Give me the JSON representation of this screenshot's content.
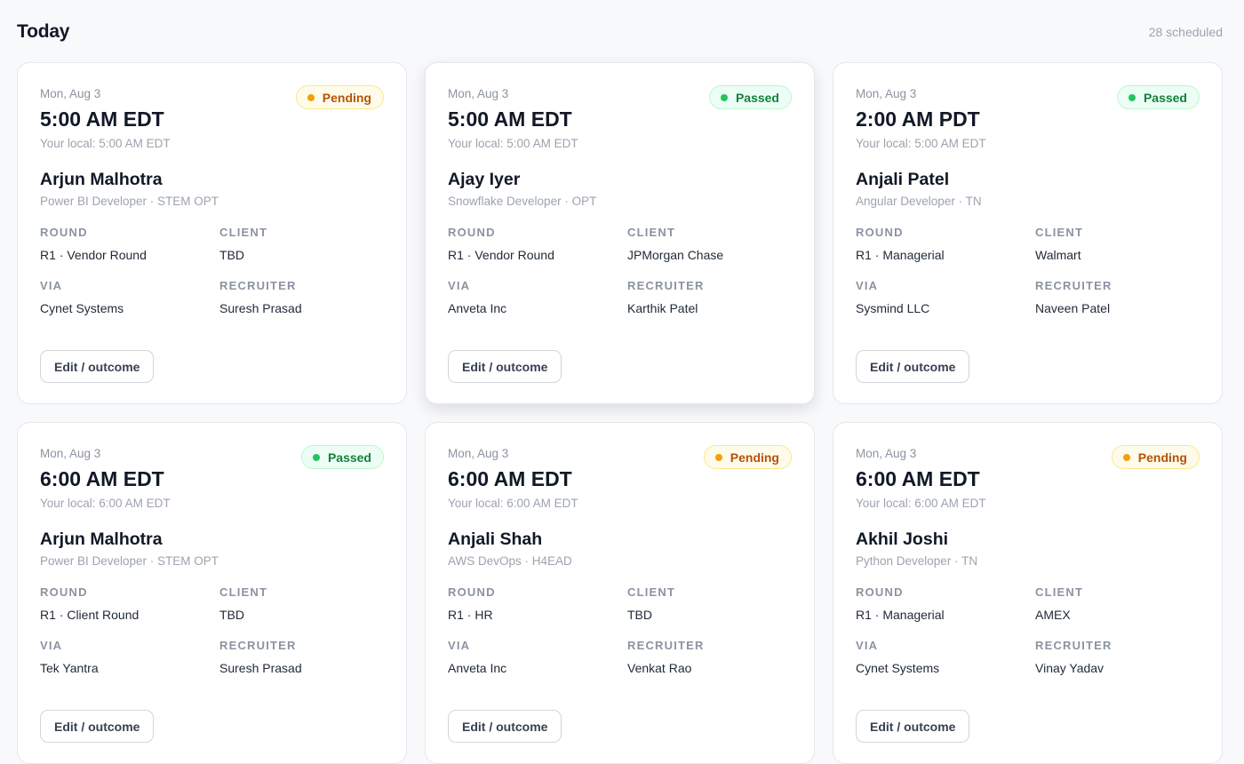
{
  "header": {
    "title": "Today",
    "count": "28 scheduled"
  },
  "labels": {
    "round": "ROUND",
    "client": "CLIENT",
    "via": "VIA",
    "recruiter": "RECRUITER",
    "edit_button": "Edit / outcome"
  },
  "status_colors": {
    "pending": "#f59e0b",
    "passed": "#22c55e"
  },
  "cards": [
    {
      "date": "Mon, Aug 3",
      "time": "5:00 AM EDT",
      "local": "Your local: 5:00 AM EDT",
      "status": "Pending",
      "status_kind": "pending",
      "name": "Arjun Malhotra",
      "role": "Power BI Developer · STEM OPT",
      "round": "R1 · Vendor Round",
      "client": "TBD",
      "via": "Cynet Systems",
      "recruiter": "Suresh Prasad"
    },
    {
      "date": "Mon, Aug 3",
      "time": "5:00 AM EDT",
      "local": "Your local: 5:00 AM EDT",
      "status": "Passed",
      "status_kind": "passed",
      "name": "Ajay Iyer",
      "role": "Snowflake Developer · OPT",
      "round": "R1 · Vendor Round",
      "client": "JPMorgan Chase",
      "via": "Anveta Inc",
      "recruiter": "Karthik Patel"
    },
    {
      "date": "Mon, Aug 3",
      "time": "2:00 AM PDT",
      "local": "Your local: 5:00 AM EDT",
      "status": "Passed",
      "status_kind": "passed",
      "name": "Anjali Patel",
      "role": "Angular Developer · TN",
      "round": "R1 · Managerial",
      "client": "Walmart",
      "via": "Sysmind LLC",
      "recruiter": "Naveen Patel"
    },
    {
      "date": "Mon, Aug 3",
      "time": "6:00 AM EDT",
      "local": "Your local: 6:00 AM EDT",
      "status": "Passed",
      "status_kind": "passed",
      "name": "Arjun Malhotra",
      "role": "Power BI Developer · STEM OPT",
      "round": "R1 · Client Round",
      "client": "TBD",
      "via": "Tek Yantra",
      "recruiter": "Suresh Prasad"
    },
    {
      "date": "Mon, Aug 3",
      "time": "6:00 AM EDT",
      "local": "Your local: 6:00 AM EDT",
      "status": "Pending",
      "status_kind": "pending",
      "name": "Anjali Shah",
      "role": "AWS DevOps · H4EAD",
      "round": "R1 · HR",
      "client": "TBD",
      "via": "Anveta Inc",
      "recruiter": "Venkat Rao"
    },
    {
      "date": "Mon, Aug 3",
      "time": "6:00 AM EDT",
      "local": "Your local: 6:00 AM EDT",
      "status": "Pending",
      "status_kind": "pending",
      "name": "Akhil Joshi",
      "role": "Python Developer · TN",
      "round": "R1 · Managerial",
      "client": "AMEX",
      "via": "Cynet Systems",
      "recruiter": "Vinay Yadav"
    }
  ]
}
